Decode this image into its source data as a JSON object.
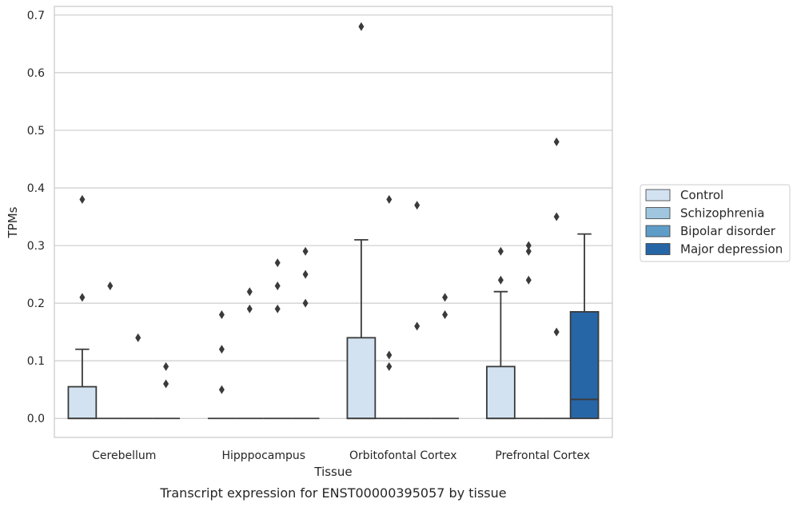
{
  "chart_data": {
    "type": "boxplot",
    "ylabel": "TPMs",
    "xlabel": "Tissue",
    "caption": "Transcript expression for ENST00000395057 by tissue",
    "categories": [
      "Cerebellum",
      "Hipppocampus",
      "Orbitofontal Cortex",
      "Prefrontal Cortex"
    ],
    "ylim": [
      -0.033,
      0.715
    ],
    "yticks": [
      0.0,
      0.1,
      0.2,
      0.3,
      0.4,
      0.5,
      0.6,
      0.7
    ],
    "ytick_labels": [
      "0.0",
      "0.1",
      "0.2",
      "0.3",
      "0.4",
      "0.5",
      "0.6",
      "0.7"
    ],
    "grid": "horizontal",
    "legend_position": "right",
    "series": [
      {
        "name": "Control",
        "color": "#d2e2f0"
      },
      {
        "name": "Schizophrenia",
        "color": "#9fc6de"
      },
      {
        "name": "Bipolar disorder",
        "color": "#5e9dc8"
      },
      {
        "name": "Major depression",
        "color": "#2766a6"
      }
    ],
    "boxes": [
      {
        "category": 0,
        "series": 0,
        "q1": 0,
        "median": 0,
        "q3": 0.055,
        "whisker_low": 0,
        "whisker_high": 0.12,
        "outliers": [
          0.21,
          0.38
        ]
      },
      {
        "category": 0,
        "series": 1,
        "q1": 0,
        "median": 0,
        "q3": 0,
        "whisker_low": 0,
        "whisker_high": 0,
        "outliers": [
          0.23
        ]
      },
      {
        "category": 0,
        "series": 2,
        "q1": 0,
        "median": 0,
        "q3": 0,
        "whisker_low": 0,
        "whisker_high": 0,
        "outliers": [
          0.14
        ]
      },
      {
        "category": 0,
        "series": 3,
        "q1": 0,
        "median": 0,
        "q3": 0,
        "whisker_low": 0,
        "whisker_high": 0,
        "outliers": [
          0.06,
          0.09
        ]
      },
      {
        "category": 1,
        "series": 0,
        "q1": 0,
        "median": 0,
        "q3": 0,
        "whisker_low": 0,
        "whisker_high": 0,
        "outliers": [
          0.05,
          0.12,
          0.18
        ]
      },
      {
        "category": 1,
        "series": 1,
        "q1": 0,
        "median": 0,
        "q3": 0,
        "whisker_low": 0,
        "whisker_high": 0,
        "outliers": [
          0.19,
          0.22
        ]
      },
      {
        "category": 1,
        "series": 2,
        "q1": 0,
        "median": 0,
        "q3": 0,
        "whisker_low": 0,
        "whisker_high": 0,
        "outliers": [
          0.19,
          0.23,
          0.27
        ]
      },
      {
        "category": 1,
        "series": 3,
        "q1": 0,
        "median": 0,
        "q3": 0,
        "whisker_low": 0,
        "whisker_high": 0,
        "outliers": [
          0.2,
          0.25,
          0.29
        ]
      },
      {
        "category": 2,
        "series": 0,
        "q1": 0,
        "median": 0,
        "q3": 0.14,
        "whisker_low": 0,
        "whisker_high": 0.31,
        "outliers": [
          0.68
        ]
      },
      {
        "category": 2,
        "series": 1,
        "q1": 0,
        "median": 0,
        "q3": 0,
        "whisker_low": 0,
        "whisker_high": 0,
        "outliers": [
          0.09,
          0.11,
          0.38
        ]
      },
      {
        "category": 2,
        "series": 2,
        "q1": 0,
        "median": 0,
        "q3": 0,
        "whisker_low": 0,
        "whisker_high": 0,
        "outliers": [
          0.16,
          0.37
        ]
      },
      {
        "category": 2,
        "series": 3,
        "q1": 0,
        "median": 0,
        "q3": 0,
        "whisker_low": 0,
        "whisker_high": 0,
        "outliers": [
          0.18,
          0.21
        ]
      },
      {
        "category": 3,
        "series": 0,
        "q1": 0,
        "median": 0,
        "q3": 0.09,
        "whisker_low": 0,
        "whisker_high": 0.22,
        "outliers": [
          0.24,
          0.29
        ]
      },
      {
        "category": 3,
        "series": 1,
        "q1": 0,
        "median": 0,
        "q3": 0,
        "whisker_low": 0,
        "whisker_high": 0,
        "outliers": [
          0.24,
          0.29,
          0.3
        ]
      },
      {
        "category": 3,
        "series": 2,
        "q1": 0,
        "median": 0,
        "q3": 0,
        "whisker_low": 0,
        "whisker_high": 0,
        "outliers": [
          0.15,
          0.35,
          0.48
        ]
      },
      {
        "category": 3,
        "series": 3,
        "q1": 0,
        "median": 0.033,
        "q3": 0.185,
        "whisker_low": 0,
        "whisker_high": 0.32,
        "outliers": []
      }
    ]
  }
}
